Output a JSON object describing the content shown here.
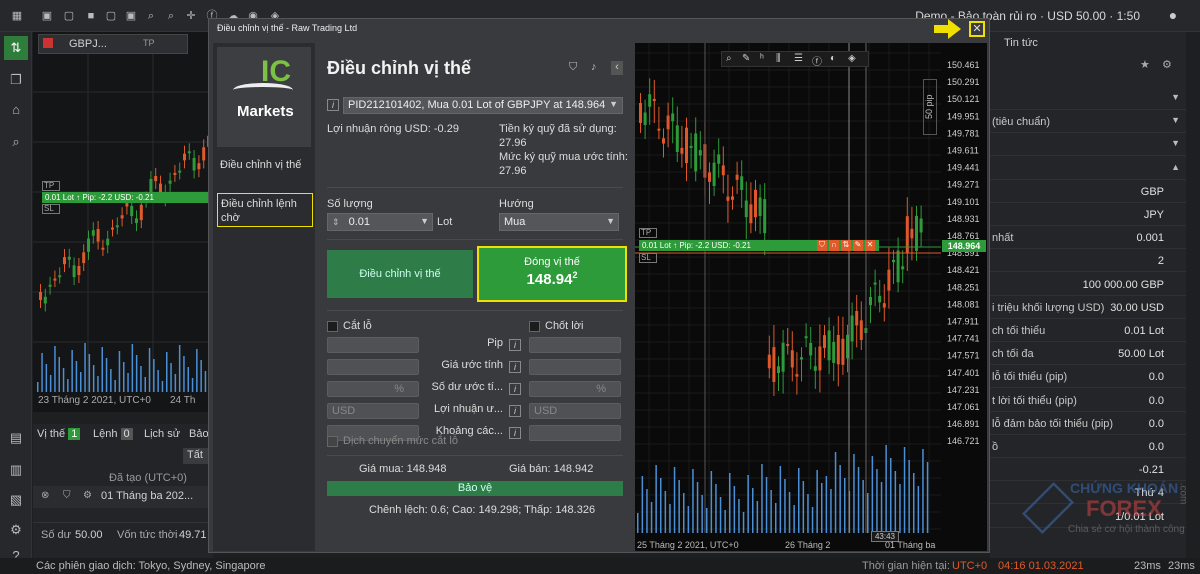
{
  "topbar": {
    "account_status": "Demo - Bảo toàn rủi ro · USD 50.00 · 1:50",
    "icons": [
      "layout-icon",
      "chart-icon",
      "square-icon",
      "square-icon",
      "square-icon",
      "square-icon",
      "magnify-icon",
      "magnify-icon",
      "crosshair-icon",
      "bars-icon",
      "clock-icon",
      "facebook-icon",
      "cloud-icon",
      "eye-icon",
      "drop-icon"
    ]
  },
  "bg_chart": {
    "tab_label": "GBPJ...",
    "tp_label": "TP",
    "position_line": "0.01 Lot ↑  Pip: -2.2   USD: -0.21",
    "sl_label": "SL",
    "date_left": "23 Tháng 2 2021, UTC+0",
    "date_right": "24 Th"
  },
  "bg_positions": {
    "tabs": [
      "Vị thế",
      "Lệnh",
      "Lịch sử",
      "Bảo"
    ],
    "pos_count": "1",
    "order_count": "0",
    "filter": "Tất",
    "opened_header": "Đã tạo (UTC+0)",
    "row_date": "01 Tháng ba 202...",
    "balance_label": "Số dư",
    "balance_value": "50.00",
    "equity_label": "Vốn tức thời",
    "equity_value": "49.71"
  },
  "right_panel": {
    "tab": "Tin tức",
    "rows": [
      {
        "label": "",
        "value": ""
      },
      {
        "label": "(tiêu chuẩn)",
        "value": ""
      },
      {
        "label": "",
        "value": ""
      },
      {
        "label": "",
        "value": ""
      },
      {
        "label": "",
        "value": "GBP"
      },
      {
        "label": "",
        "value": "JPY"
      },
      {
        "label": "nhất",
        "value": "0.001"
      },
      {
        "label": "",
        "value": "2"
      },
      {
        "label": "",
        "value": "100 000.00 GBP"
      },
      {
        "label": "i triệu khối lượng USD)",
        "value": "30.00 USD"
      },
      {
        "label": "ch tối thiểu",
        "value": "0.01 Lot"
      },
      {
        "label": "ch tối đa",
        "value": "50.00 Lot"
      },
      {
        "label": "lỗ tối thiểu (pip)",
        "value": "0.0"
      },
      {
        "label": "t lời tối thiểu (pip)",
        "value": "0.0"
      },
      {
        "label": "lỗ đảm bảo tối thiểu (pip)",
        "value": "0.0"
      },
      {
        "label": "ồ",
        "value": "0.0"
      },
      {
        "label": "",
        "value": "-0.21"
      },
      {
        "label": "",
        "value": "Thứ 4"
      },
      {
        "label": "",
        "value": "1/0.01 Lot"
      }
    ],
    "watermark_title": "CHỨNG KHOÁN",
    "watermark_brand": "FOREX",
    "watermark_sub": "Chia sẻ cơ hội thành công",
    "watermark_domain": ".com"
  },
  "status_bar": {
    "sessions": "Các phiên giao dịch: Tokyo, Sydney, Singapore",
    "server_time_label": "Thời gian hiện tại:",
    "timezone": "UTC+0",
    "server_time": "04:16 01.03.2021",
    "ping1": "23ms",
    "ping2": "23ms"
  },
  "modal": {
    "title": "Điều chỉnh vị thế - Raw Trading Ltd",
    "logo_top": "IC",
    "logo_bottom": "Markets",
    "side_items": [
      "Điều chỉnh vị thế",
      "Điều chỉnh lệnh chờ"
    ],
    "heading": "Điều chỉnh vị thế",
    "position_select": "PID212101402, Mua 0.01 Lot of GBPJPY at 148.964",
    "net_profit": "Lợi nhuận ròng USD: -0.29",
    "used_margin_label": "Tiền ký quỹ đã sử dụng:",
    "used_margin_value": "27.96",
    "est_margin_label": "Mức ký quỹ mua ước tính:",
    "est_margin_value": "27.96",
    "qty_label": "Số lượng",
    "qty_value": "0.01",
    "qty_unit": "Lot",
    "direction_label": "Hướng",
    "direction_value": "Mua",
    "adjust_btn": "Điều chỉnh vị thế",
    "close_btn": "Đóng vị thế",
    "close_price": "148.94",
    "close_price_sup": "2",
    "stop_loss": "Cắt lỗ",
    "take_profit": "Chốt lời",
    "field_labels": [
      "Pip",
      "Giá ước tính",
      "Số dư ước tí...",
      "Lợi nhuận ư...",
      "Khoảng các..."
    ],
    "pct": "%",
    "currency": "USD",
    "trailing": "Dịch chuyển mức cắt lỗ",
    "buy_price": "Giá mua: 148.948",
    "sell_price": "Giá bán: 148.942",
    "protect_btn": "Bảo vệ",
    "spread_info": "Chênh lệch: 0.6; Cao: 149.298; Thấp: 148.326"
  },
  "modal_chart": {
    "pip_scale": "50 pip",
    "position_line": "0.01 Lot ↑  Pip: -2.2   USD: -0.21",
    "tp_label": "TP",
    "sl_label": "SL",
    "current_price": "148.964",
    "price_labels": [
      "150.461",
      "150.291",
      "150.121",
      "149.951",
      "149.781",
      "149.611",
      "149.441",
      "149.271",
      "149.101",
      "148.931",
      "148.761",
      "148.591",
      "148.421",
      "148.251",
      "148.081",
      "147.911",
      "147.741",
      "147.571",
      "147.401",
      "147.231",
      "147.061",
      "146.891",
      "146.721"
    ],
    "date_labels": [
      "25 Tháng 2 2021, UTC+0",
      "26 Tháng 2",
      "01 Tháng ba"
    ],
    "cursor_time": "43:43",
    "colors": {
      "bull": "#2e9b3a",
      "bear": "#e0582a",
      "volume": "#4b8fd6",
      "position": "#2e9b3a"
    }
  }
}
